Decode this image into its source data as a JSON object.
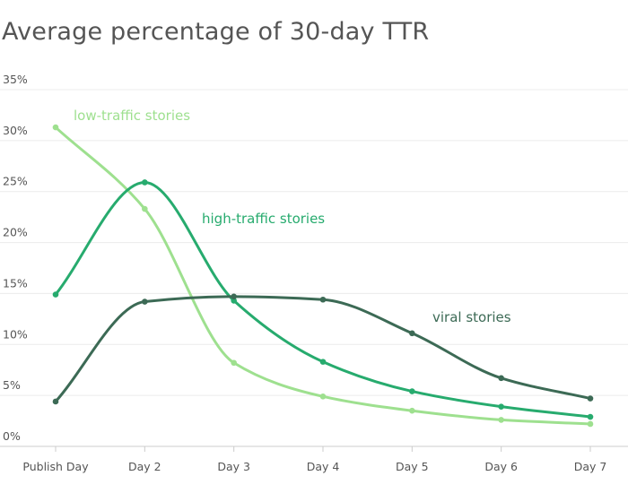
{
  "chart_data": {
    "type": "line",
    "title": "Average percentage of 30-day TTR",
    "xlabel": "",
    "ylabel": "",
    "categories": [
      "Publish Day",
      "Day 2",
      "Day 3",
      "Day 4",
      "Day 5",
      "Day 6",
      "Day 7"
    ],
    "y_ticks": [
      "0%",
      "5%",
      "10%",
      "15%",
      "20%",
      "25%",
      "30%",
      "35%"
    ],
    "ylim": [
      0,
      35
    ],
    "grid": true,
    "legend": "inline labels",
    "series": [
      {
        "name": "low-traffic stories",
        "color": "#9ee08f",
        "values": [
          31.3,
          23.3,
          8.2,
          4.9,
          3.5,
          2.6,
          2.2
        ]
      },
      {
        "name": "high-traffic stories",
        "color": "#27ab6e",
        "values": [
          14.9,
          25.9,
          14.3,
          8.3,
          5.4,
          3.9,
          2.9
        ]
      },
      {
        "name": "viral stories",
        "color": "#3c6a55",
        "values": [
          4.4,
          14.2,
          14.7,
          14.4,
          11.1,
          6.7,
          4.7
        ]
      }
    ]
  }
}
